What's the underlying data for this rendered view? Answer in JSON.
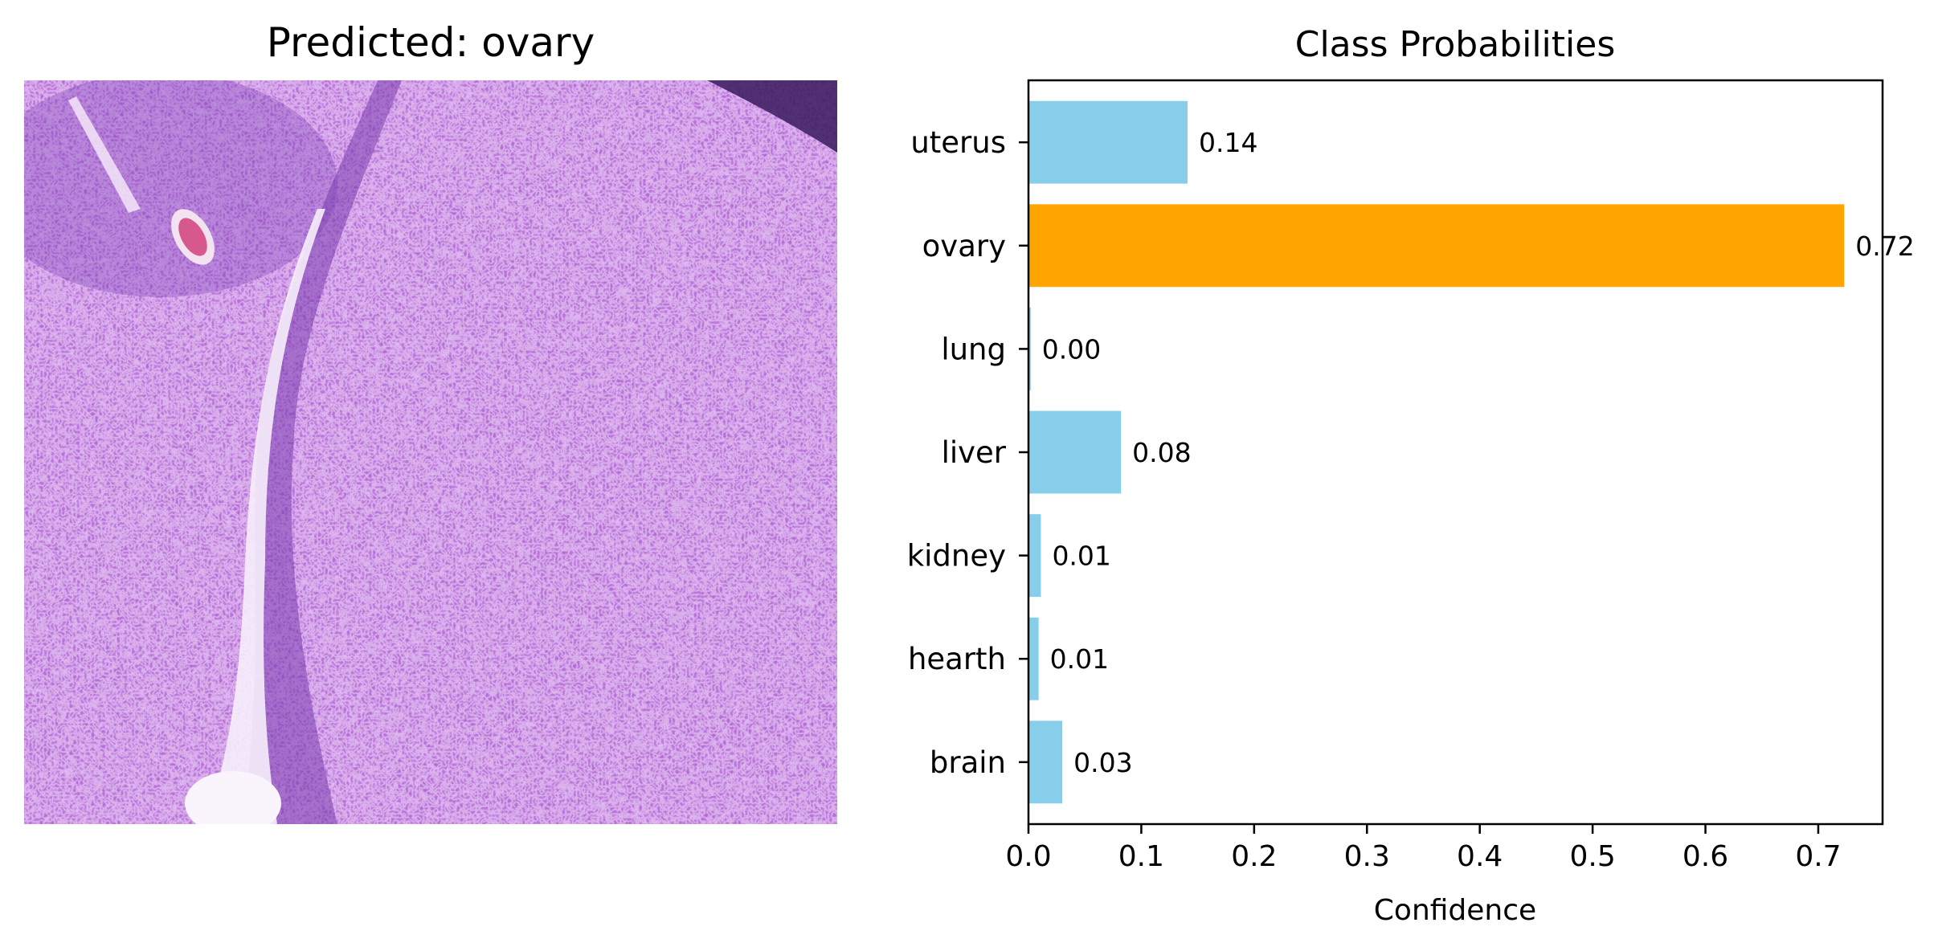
{
  "image_panel": {
    "title": "Predicted: ovary",
    "image_description": "H&E stained histology tissue patch (purple/pink)"
  },
  "chart_data": {
    "type": "bar",
    "orientation": "horizontal",
    "title": "Class Probabilities",
    "xlabel": "Confidence",
    "ylabel": "",
    "xlim": [
      0,
      0.757
    ],
    "xticks": [
      0.0,
      0.1,
      0.2,
      0.3,
      0.4,
      0.5,
      0.6,
      0.7
    ],
    "xtick_labels": [
      "0.0",
      "0.1",
      "0.2",
      "0.3",
      "0.4",
      "0.5",
      "0.6",
      "0.7"
    ],
    "categories": [
      "brain",
      "hearth",
      "kidney",
      "liver",
      "lung",
      "ovary",
      "uterus"
    ],
    "values": [
      0.03,
      0.009,
      0.011,
      0.082,
      0.002,
      0.723,
      0.141
    ],
    "value_labels": [
      "0.03",
      "0.01",
      "0.01",
      "0.08",
      "0.00",
      "0.72",
      "0.14"
    ],
    "highlight_category": "ovary",
    "colors": {
      "default": "#87ceeb",
      "highlight": "#ffa500"
    },
    "grid": false,
    "legend": "none"
  }
}
